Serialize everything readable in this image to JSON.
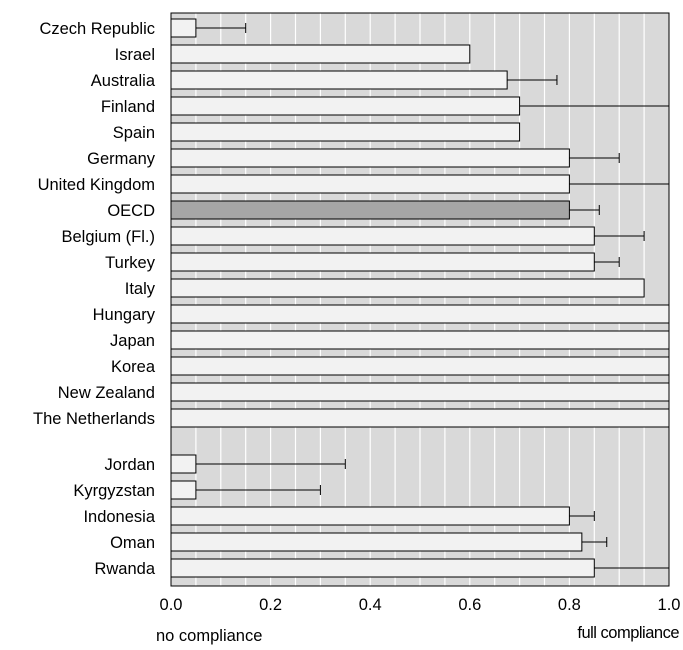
{
  "chart_data": {
    "type": "bar",
    "orientation": "horizontal",
    "x_axis": {
      "min": 0,
      "max": 1,
      "ticks": [
        0,
        0.2,
        0.4,
        0.6,
        0.8,
        1
      ],
      "tick_labels": [
        "0.0",
        "0.2",
        "0.4",
        "0.6",
        "0.8",
        "1.0"
      ],
      "left_caption": "no compliance",
      "right_caption": "full compliance"
    },
    "grid": true,
    "colors": {
      "plot_background": "#d9d9d9",
      "grid": "#ffffff",
      "bar_fill": "#f2f2f2",
      "highlight_fill": "#a6a6a6",
      "bar_stroke": "#000000"
    },
    "groups": [
      {
        "bars": [
          {
            "label": "Czech Republic",
            "value": 0.05,
            "error_high": 0.15
          },
          {
            "label": "Israel",
            "value": 0.6
          },
          {
            "label": "Australia",
            "value": 0.675,
            "error_high": 0.775
          },
          {
            "label": "Finland",
            "value": 0.7,
            "error_high": 1.0
          },
          {
            "label": "Spain",
            "value": 0.7
          },
          {
            "label": "Germany",
            "value": 0.8,
            "error_high": 0.9
          },
          {
            "label": "United Kingdom",
            "value": 0.8,
            "error_high": 1.0
          },
          {
            "label": "OECD",
            "value": 0.8,
            "error_high": 0.86,
            "highlight": true
          },
          {
            "label": "Belgium (Fl.)",
            "value": 0.85,
            "error_high": 0.95
          },
          {
            "label": "Turkey",
            "value": 0.85,
            "error_high": 0.9
          },
          {
            "label": "Italy",
            "value": 0.95
          },
          {
            "label": "Hungary",
            "value": 1.0
          },
          {
            "label": "Japan",
            "value": 1.0
          },
          {
            "label": "Korea",
            "value": 1.0
          },
          {
            "label": "New Zealand",
            "value": 1.0
          },
          {
            "label": "The Netherlands",
            "value": 1.0
          }
        ]
      },
      {
        "bars": [
          {
            "label": "Jordan",
            "value": 0.05,
            "error_high": 0.35
          },
          {
            "label": "Kyrgyzstan",
            "value": 0.05,
            "error_high": 0.3
          },
          {
            "label": "Indonesia",
            "value": 0.8,
            "error_high": 0.85
          },
          {
            "label": "Oman",
            "value": 0.825,
            "error_high": 0.875
          },
          {
            "label": "Rwanda",
            "value": 0.85,
            "error_high": 1.0
          }
        ]
      }
    ]
  }
}
